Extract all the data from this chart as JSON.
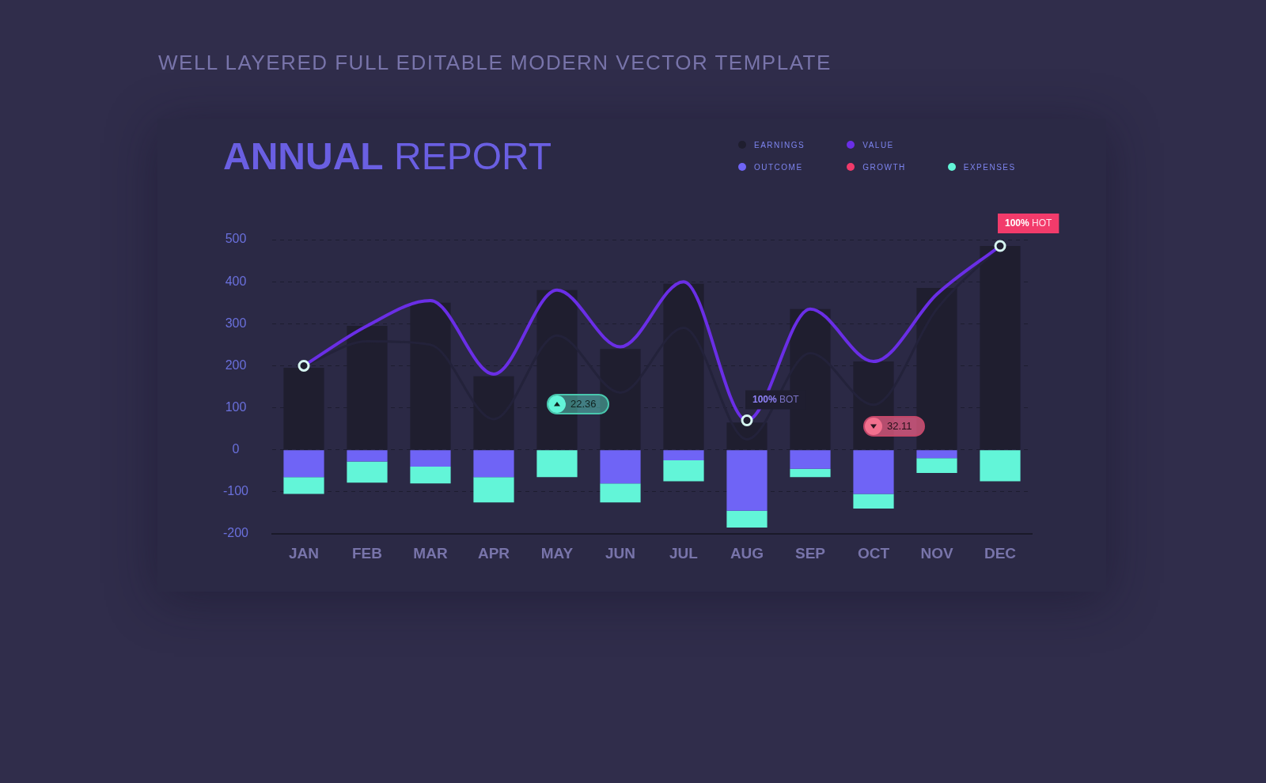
{
  "chart_data": {
    "type": "bar",
    "title": "ANNUAL REPORT",
    "categories": [
      "JAN",
      "FEB",
      "MAR",
      "APR",
      "MAY",
      "JUN",
      "JUL",
      "AUG",
      "SEP",
      "OCT",
      "NOV",
      "DEC"
    ],
    "stacked": true,
    "ylim": [
      -200,
      500
    ],
    "yticks": [
      -200,
      -100,
      0,
      100,
      200,
      300,
      400,
      500
    ],
    "grid": "y",
    "legend": "top right",
    "series": [
      {
        "name": "EARNINGS",
        "color": "#1f1e2f",
        "values": [
          195,
          295,
          350,
          175,
          380,
          240,
          395,
          65,
          335,
          210,
          385,
          485
        ]
      },
      {
        "name": "OUTCOME",
        "color": "#6f64f6",
        "values": [
          -65,
          -28,
          -40,
          -65,
          0,
          -80,
          -25,
          -145,
          -45,
          -105,
          -20,
          0
        ]
      },
      {
        "name": "VALUE",
        "type": "line",
        "color": "#6a2ee6",
        "marker": "none",
        "values": [
          200,
          295,
          355,
          180,
          380,
          245,
          400,
          70,
          335,
          210,
          370,
          485
        ]
      },
      {
        "name": "GROWTH",
        "type": "line",
        "color": "#f03a6a",
        "marker": "none",
        "values": [
          null,
          null,
          null,
          null,
          null,
          null,
          null,
          null,
          null,
          null,
          null,
          null
        ]
      },
      {
        "name": "EXPENSES",
        "color": "#62f5d8",
        "values": [
          -40,
          -50,
          -40,
          -60,
          -65,
          -45,
          -50,
          -40,
          -20,
          -35,
          -35,
          -75
        ]
      },
      {
        "type": "line",
        "color": "#23223a",
        "marker": "none",
        "values": [
          200,
          258,
          250,
          73,
          272,
          136,
          290,
          25,
          230,
          107,
          335,
          485
        ]
      },
      {
        "type": "scatter",
        "color": "#d7f7f2",
        "marker": "circle",
        "x": [
          "JAN",
          "AUG",
          "DEC"
        ],
        "values": [
          200,
          70,
          485
        ]
      }
    ],
    "annotations": [
      "WELL LAYERED FULL EDITABLE MODERN VECTOR TEMPLATE",
      {
        "text": "100% HOT",
        "x": "DEC",
        "y": 485
      },
      {
        "text": "100% BOT",
        "x": "AUG",
        "y": 70
      },
      {
        "text": "22.36",
        "x": "MAY",
        "y": 109
      },
      {
        "text": "32.11",
        "x": "OCT",
        "y": 55
      }
    ]
  }
}
